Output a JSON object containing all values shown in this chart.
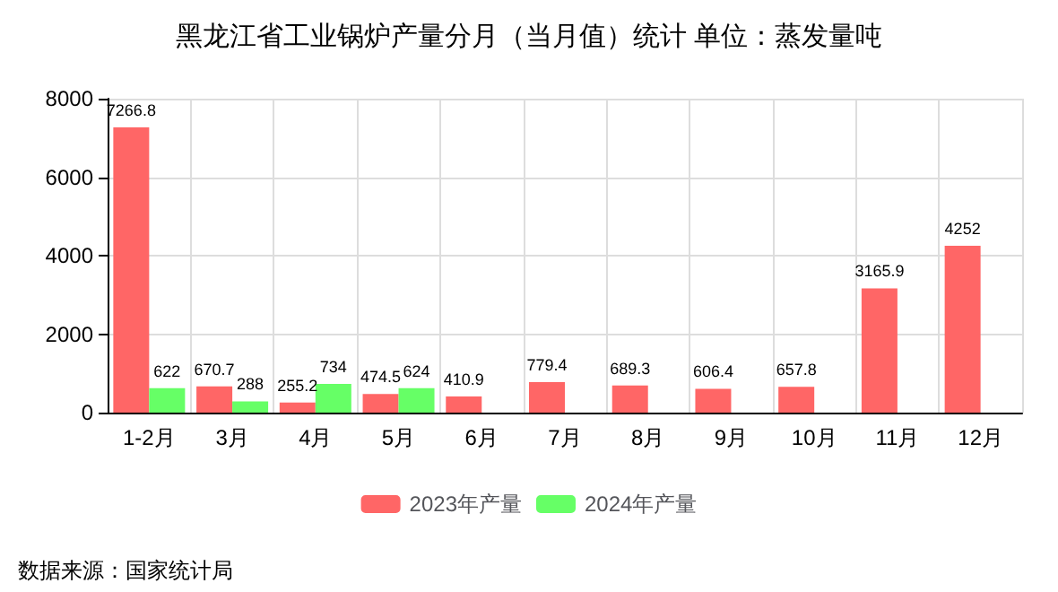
{
  "chart_data": {
    "type": "bar",
    "title": "黑龙江省工业锅炉产量分月（当月值）统计 单位：蒸发量吨",
    "categories": [
      "1-2月",
      "3月",
      "4月",
      "5月",
      "6月",
      "7月",
      "8月",
      "9月",
      "10月",
      "11月",
      "12月"
    ],
    "series": [
      {
        "name": "2023年产量",
        "color": "#ff6666",
        "values": [
          7266.8,
          670.7,
          255.2,
          474.5,
          410.9,
          779.4,
          689.3,
          606.4,
          657.8,
          3165.9,
          4252
        ]
      },
      {
        "name": "2024年产量",
        "color": "#66ff66",
        "values": [
          622,
          288,
          734,
          624,
          null,
          null,
          null,
          null,
          null,
          null,
          null
        ]
      }
    ],
    "ylim": [
      0,
      8000
    ],
    "yticks": [
      0,
      2000,
      4000,
      6000,
      8000
    ],
    "grid": true,
    "legend": "bottom",
    "data_labels": true,
    "annotations": [
      "数据来源：国家统计局"
    ]
  }
}
